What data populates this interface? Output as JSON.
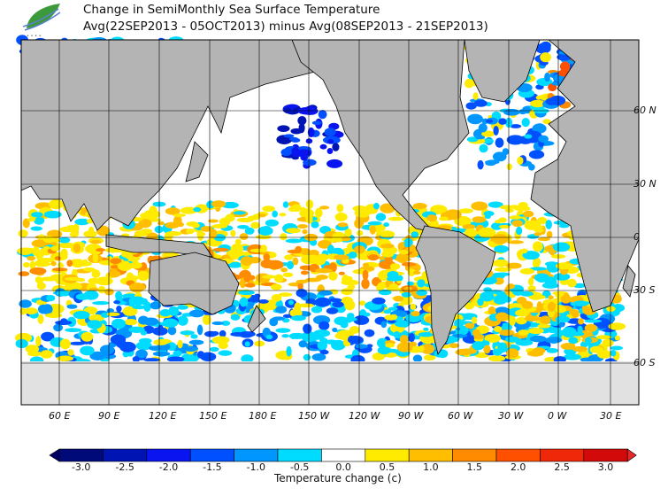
{
  "title": "Change in SemiMonthly Sea Surface Temperature",
  "subtitle": "Avg(22SEP2013 - 05OCT2013) minus Avg(08SEP2013 - 21SEP2013)",
  "logo_icon": "leaf-wave-logo",
  "lon_labels": [
    "60 E",
    "90 E",
    "120 E",
    "150 E",
    "180 E",
    "150 W",
    "120 W",
    "90 W",
    "60 W",
    "30 W",
    "0 W",
    "30 E"
  ],
  "lat_labels": [
    "60 N",
    "30 N",
    "0",
    "30 S",
    "60 S"
  ],
  "colorbar": {
    "title": "Temperature change  (c)",
    "ticks": [
      "-3.0",
      "-2.5",
      "-2.0",
      "-1.5",
      "-1.0",
      "-0.5",
      "0.0",
      "0.5",
      "1.0",
      "1.5",
      "2.0",
      "2.5",
      "3.0"
    ],
    "colors": [
      "#000a78",
      "#0014b4",
      "#0a14f0",
      "#0050ff",
      "#0096ff",
      "#00dcff",
      "#ffffff",
      "#ffeb00",
      "#ffbe00",
      "#ff8c00",
      "#ff5000",
      "#f0280a",
      "#d20a0a"
    ],
    "low_color": "#000064",
    "high_color": "#e6282d"
  },
  "land_color": "#b4b4b4",
  "ice_color": "#e1e1e1"
}
